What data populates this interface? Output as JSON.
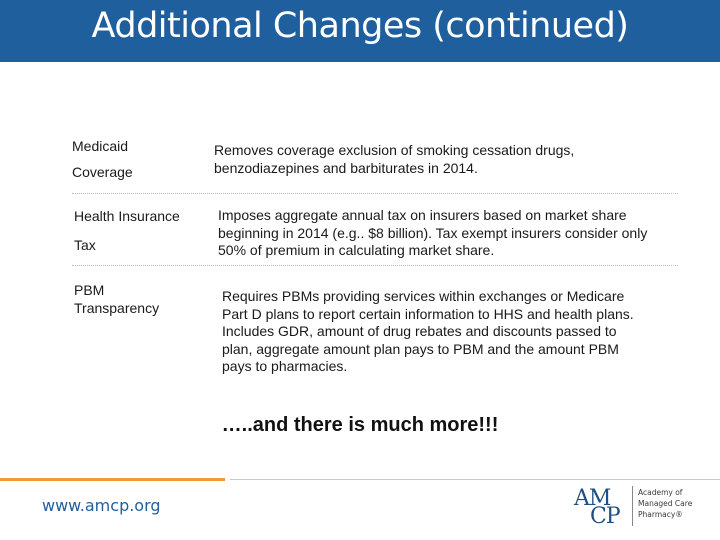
{
  "title": "Additional Changes (continued)",
  "rows": [
    {
      "label_lines": [
        "Medicaid",
        "Coverage"
      ],
      "description": "Removes coverage exclusion of smoking cessation drugs, benzodiazepines and barbiturates in 2014."
    },
    {
      "label_lines": [
        "Health Insurance",
        "Tax"
      ],
      "description": "Imposes aggregate annual tax on insurers based on market share beginning in 2014 (e.g.. $8 billion). Tax exempt insurers consider only 50% of premium in calculating market share."
    },
    {
      "label_lines": [
        "PBM",
        "Transparency"
      ],
      "description": "Requires PBMs providing services within exchanges or Medicare Part D plans to report certain information to HHS and health plans. Includes GDR, amount of drug rebates and discounts passed to plan, aggregate amount plan pays to PBM and the amount PBM pays to pharmacies."
    }
  ],
  "more_text": "…..and there is much more!!!",
  "footer": {
    "url": "www.amcp.org",
    "logo_am": "AM",
    "logo_cp": "CP",
    "logo_tagline": [
      "Academy of",
      "Managed Care",
      "Pharmacy®"
    ]
  },
  "colors": {
    "title_bar": "#1f5f9e",
    "footer_accent": "#f29a2e",
    "url_text": "#1f5f9e"
  }
}
